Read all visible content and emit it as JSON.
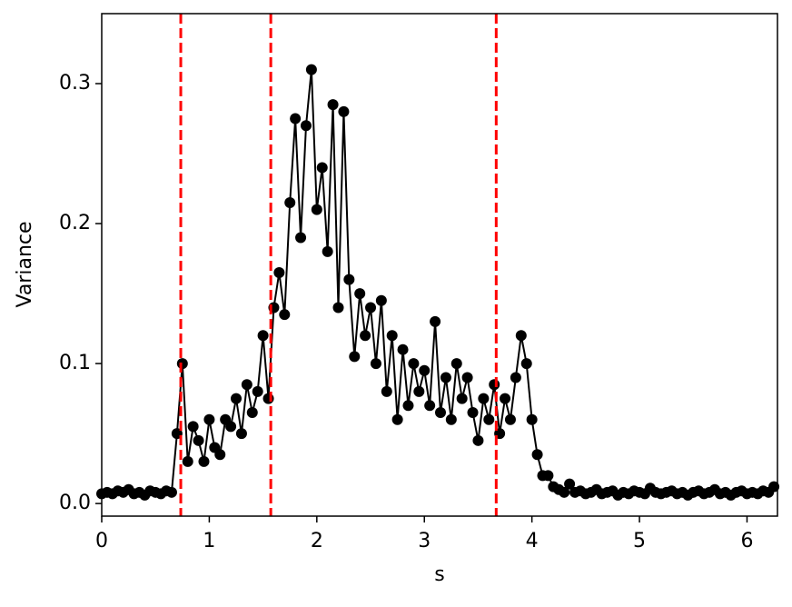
{
  "chart_data": {
    "type": "line",
    "xlabel": "s",
    "ylabel": "Variance",
    "x": [
      0,
      0.05,
      0.1,
      0.15,
      0.2,
      0.25,
      0.3,
      0.35,
      0.4,
      0.45,
      0.5,
      0.55,
      0.6,
      0.65,
      0.7,
      0.75,
      0.8,
      0.85,
      0.9,
      0.95,
      1,
      1.05,
      1.1,
      1.15,
      1.2,
      1.25,
      1.3,
      1.35,
      1.4,
      1.45,
      1.5,
      1.55,
      1.6,
      1.65,
      1.7,
      1.75,
      1.8,
      1.85,
      1.9,
      1.95,
      2,
      2.05,
      2.1,
      2.15,
      2.2,
      2.25,
      2.3,
      2.35,
      2.4,
      2.45,
      2.5,
      2.55,
      2.6,
      2.65,
      2.7,
      2.75,
      2.8,
      2.85,
      2.9,
      2.95,
      3,
      3.05,
      3.1,
      3.15,
      3.2,
      3.25,
      3.3,
      3.35,
      3.4,
      3.45,
      3.5,
      3.55,
      3.6,
      3.65,
      3.7,
      3.75,
      3.8,
      3.85,
      3.9,
      3.95,
      4,
      4.05,
      4.1,
      4.15,
      4.2,
      4.25,
      4.3,
      4.35,
      4.4,
      4.45,
      4.5,
      4.55,
      4.6,
      4.65,
      4.7,
      4.75,
      4.8,
      4.85,
      4.9,
      4.95,
      5,
      5.05,
      5.1,
      5.15,
      5.2,
      5.25,
      5.3,
      5.35,
      5.4,
      5.45,
      5.5,
      5.55,
      5.6,
      5.65,
      5.7,
      5.75,
      5.8,
      5.85,
      5.9,
      5.95,
      6,
      6.05,
      6.1,
      6.15,
      6.2,
      6.25
    ],
    "values": [
      0.007,
      0.008,
      0.007,
      0.009,
      0.008,
      0.01,
      0.007,
      0.008,
      0.006,
      0.009,
      0.008,
      0.007,
      0.009,
      0.008,
      0.05,
      0.1,
      0.03,
      0.055,
      0.045,
      0.03,
      0.06,
      0.04,
      0.035,
      0.06,
      0.055,
      0.075,
      0.05,
      0.085,
      0.065,
      0.08,
      0.12,
      0.075,
      0.14,
      0.165,
      0.135,
      0.215,
      0.275,
      0.19,
      0.27,
      0.31,
      0.21,
      0.24,
      0.18,
      0.285,
      0.14,
      0.28,
      0.16,
      0.105,
      0.15,
      0.12,
      0.14,
      0.1,
      0.145,
      0.08,
      0.12,
      0.06,
      0.11,
      0.07,
      0.1,
      0.08,
      0.095,
      0.07,
      0.13,
      0.065,
      0.09,
      0.06,
      0.1,
      0.075,
      0.09,
      0.065,
      0.045,
      0.075,
      0.06,
      0.085,
      0.05,
      0.075,
      0.06,
      0.09,
      0.12,
      0.1,
      0.06,
      0.035,
      0.02,
      0.02,
      0.012,
      0.01,
      0.008,
      0.014,
      0.008,
      0.009,
      0.007,
      0.008,
      0.01,
      0.007,
      0.008,
      0.009,
      0.006,
      0.008,
      0.007,
      0.009,
      0.008,
      0.007,
      0.011,
      0.008,
      0.007,
      0.008,
      0.009,
      0.007,
      0.008,
      0.006,
      0.008,
      0.009,
      0.007,
      0.008,
      0.01,
      0.007,
      0.008,
      0.006,
      0.008,
      0.009,
      0.007,
      0.008,
      0.007,
      0.009,
      0.008,
      0.012
    ],
    "color": "#000000",
    "vlines": [
      0.735,
      1.572,
      3.668
    ],
    "vline_color": "#ff0000",
    "xlim": [
      0,
      6.2832
    ],
    "xticks": [
      0,
      1,
      2,
      3,
      4,
      5,
      6
    ],
    "ylim": [
      -0.009,
      0.35
    ],
    "yticks": [
      {
        "value": 0,
        "label": "0.0"
      },
      0.1,
      0.2,
      0.3
    ]
  }
}
